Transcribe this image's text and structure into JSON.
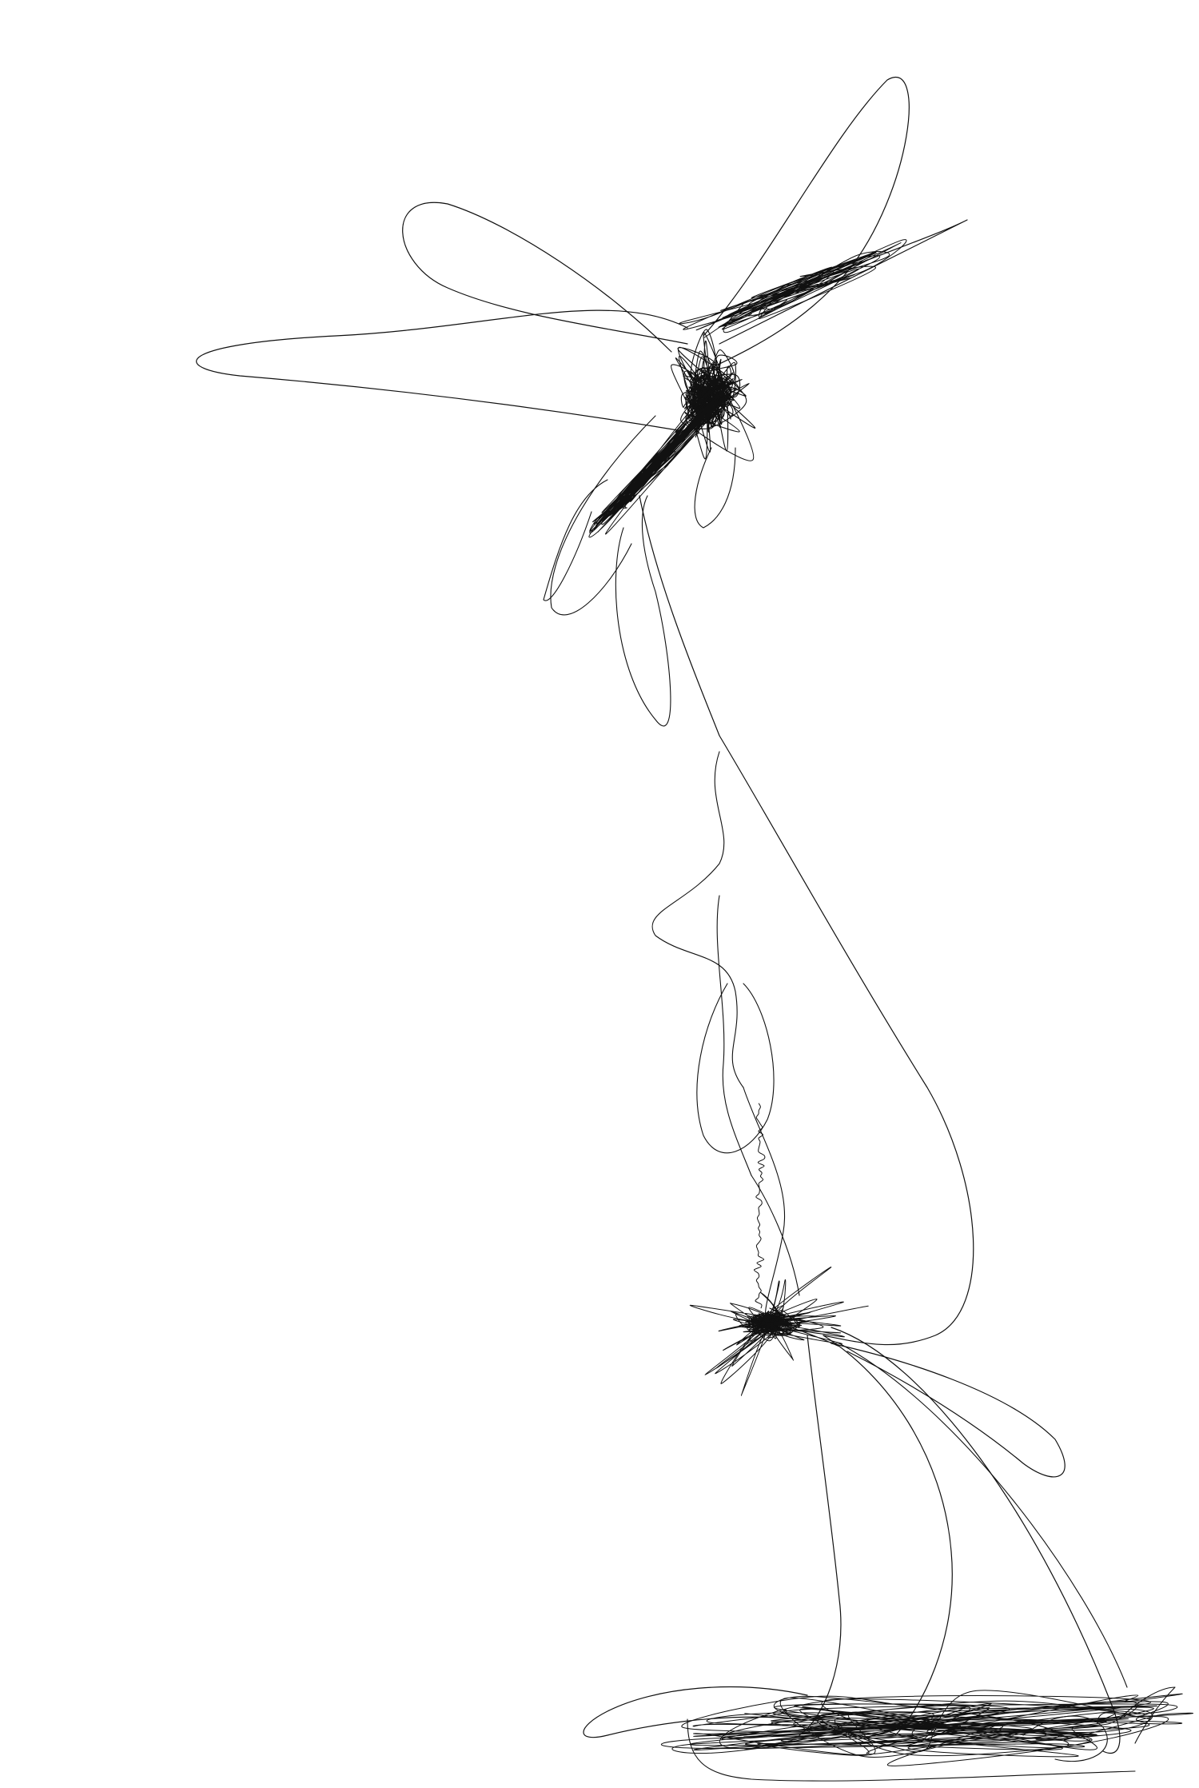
{
  "drawing": {
    "background": "#ffffff",
    "stroke": "#111111",
    "content": "continuous-line-scribble",
    "clusters": [
      "upper-knot",
      "lower-knot",
      "bottom-tangle"
    ]
  }
}
